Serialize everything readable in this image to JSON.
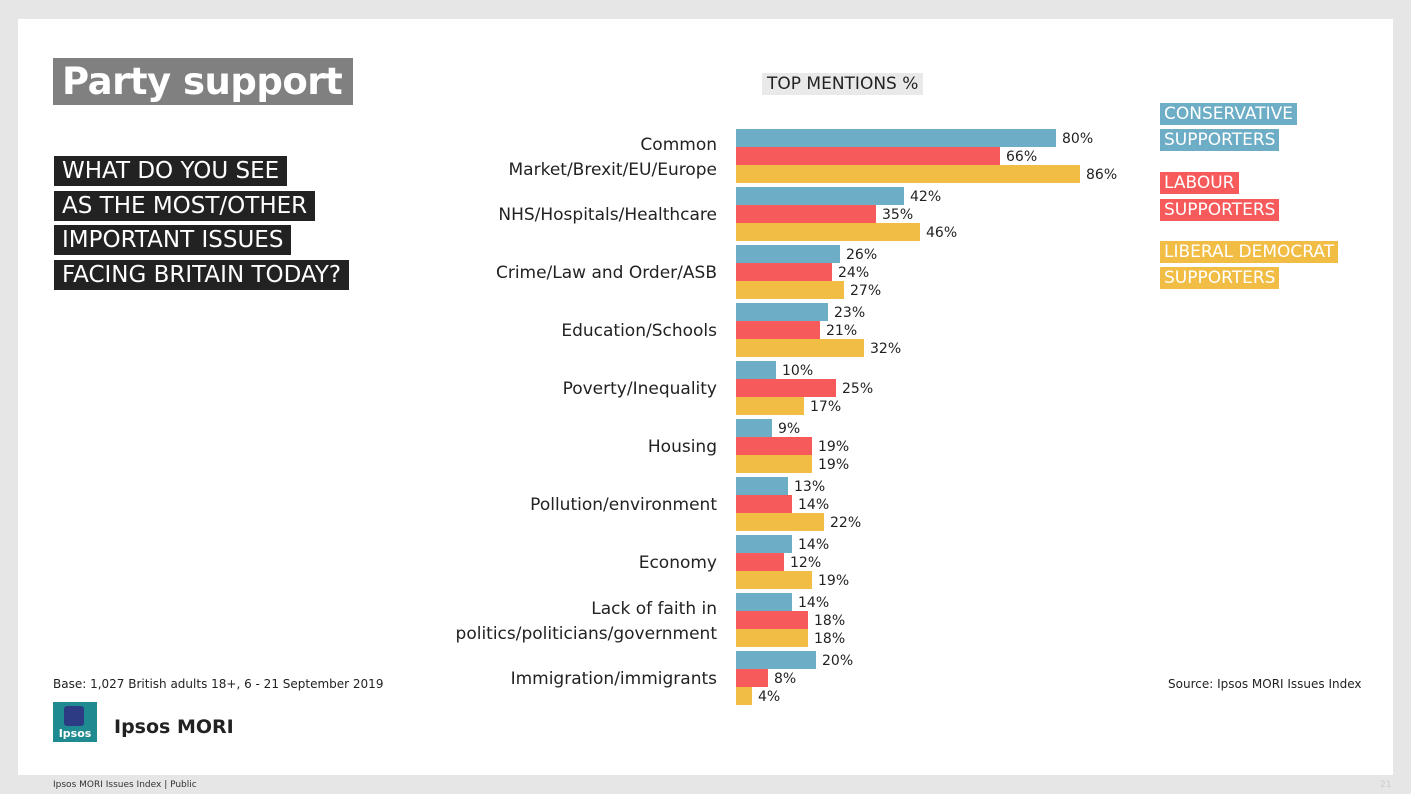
{
  "title": "Party support",
  "question_lines": [
    "WHAT DO YOU SEE",
    "AS THE MOST/OTHER",
    "IMPORTANT ISSUES",
    "FACING BRITAIN TODAY?"
  ],
  "top_mentions": "TOP MENTIONS %",
  "legend": [
    {
      "lines": [
        "CONSERVATIVE",
        "SUPPORTERS"
      ],
      "color": "#6daec6"
    },
    {
      "lines": [
        "LABOUR",
        "SUPPORTERS"
      ],
      "color": "#f65a5b"
    },
    {
      "lines": [
        "LIBERAL DEMOCRAT",
        "SUPPORTERS"
      ],
      "color": "#f1bd45"
    }
  ],
  "footer": {
    "base": "Base: 1,027 British adults 18+, 6 - 21 September 2019",
    "source": "Source: Ipsos MORI Issues Index",
    "brand": "Ipsos MORI",
    "logo_text": "Ipsos",
    "bottom_left": "Ipsos MORI Issues Index | Public",
    "page_number": "21"
  },
  "chart_data": {
    "type": "bar",
    "orientation": "horizontal",
    "categories": [
      [
        "Common",
        "Market/Brexit/EU/Europe"
      ],
      [
        "NHS/Hospitals/Healthcare"
      ],
      [
        "Crime/Law and Order/ASB"
      ],
      [
        "Education/Schools"
      ],
      [
        "Poverty/Inequality"
      ],
      [
        "Housing"
      ],
      [
        "Pollution/environment"
      ],
      [
        "Economy"
      ],
      [
        "Lack of faith in",
        "politics/politicians/government"
      ],
      [
        "Immigration/immigrants"
      ]
    ],
    "series": [
      {
        "name": "CONSERVATIVE SUPPORTERS",
        "color": "#6daec6",
        "values": [
          80,
          42,
          26,
          23,
          10,
          9,
          13,
          14,
          14,
          20
        ]
      },
      {
        "name": "LABOUR SUPPORTERS",
        "color": "#f65a5b",
        "values": [
          66,
          35,
          24,
          21,
          25,
          19,
          14,
          12,
          18,
          8
        ]
      },
      {
        "name": "LIBERAL DEMOCRAT SUPPORTERS",
        "color": "#f1bd45",
        "values": [
          86,
          46,
          27,
          32,
          17,
          19,
          22,
          19,
          18,
          4
        ]
      }
    ],
    "value_suffix": "%",
    "xlim": [
      0,
      100
    ],
    "grid": false
  }
}
